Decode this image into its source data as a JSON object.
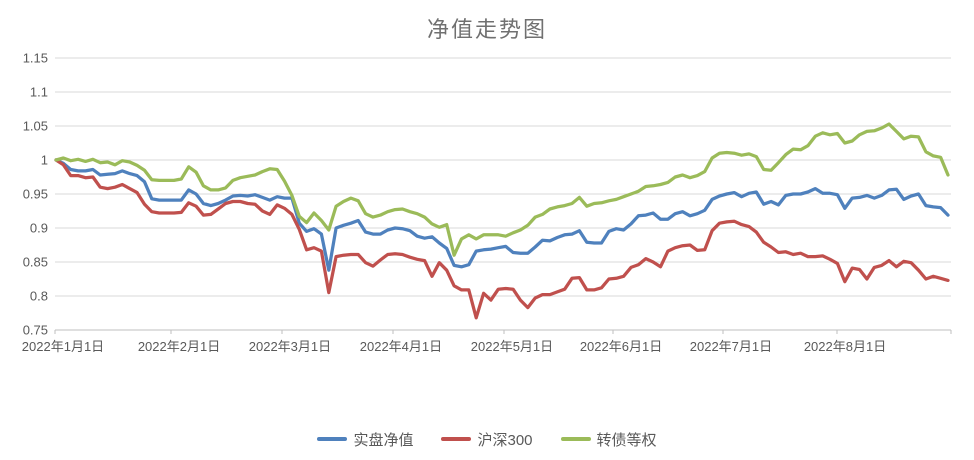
{
  "colors": {
    "background": "#FFFFFF",
    "grid": "#D9D9D9",
    "axis_line": "#BFBFBF",
    "tick_label": "#595959",
    "title": "#707070",
    "series_blue": "#4F81BD",
    "series_red": "#C0504D",
    "series_green": "#9BBB59"
  },
  "chart_data": {
    "type": "line",
    "title": "净值走势图",
    "xlabel": "",
    "ylabel": "",
    "ylim": [
      0.75,
      1.15
    ],
    "grid": true,
    "legend_position": "bottom",
    "x_note": "daily net-value curves sampled at ~2-day intervals, 2022-01-01 to 2022-08-31 (values estimated from pixels)",
    "y_ticks": [
      {
        "label": "1.15",
        "value": 1.15
      },
      {
        "label": "1.1",
        "value": 1.1
      },
      {
        "label": "1.05",
        "value": 1.05
      },
      {
        "label": "1",
        "value": 1.0
      },
      {
        "label": "0.95",
        "value": 0.95
      },
      {
        "label": "0.9",
        "value": 0.9
      },
      {
        "label": "0.85",
        "value": 0.85
      },
      {
        "label": "0.8",
        "value": 0.8
      },
      {
        "label": "0.75",
        "value": 0.75
      }
    ],
    "x_ticks": [
      {
        "label": "2022年1月1日",
        "pos": 0.0
      },
      {
        "label": "2022年2月1日",
        "pos": 0.1295
      },
      {
        "label": "2022年3月1日",
        "pos": 0.2533
      },
      {
        "label": "2022年4月1日",
        "pos": 0.3772
      },
      {
        "label": "2022年5月1日",
        "pos": 0.5011
      },
      {
        "label": "2022年6月1日",
        "pos": 0.6228
      },
      {
        "label": "2022年7月1日",
        "pos": 0.7455
      },
      {
        "label": "2022年8月1日",
        "pos": 0.8728
      },
      {
        "label": "",
        "pos": 1.0
      }
    ],
    "series": [
      {
        "name": "实盘净值",
        "color": "#4F81BD",
        "values": [
          1.0,
          0.995,
          0.986,
          0.984,
          0.984,
          0.986,
          0.978,
          0.979,
          0.98,
          0.984,
          0.98,
          0.977,
          0.968,
          0.943,
          0.941,
          0.941,
          0.941,
          0.941,
          0.956,
          0.95,
          0.936,
          0.933,
          0.936,
          0.941,
          0.947,
          0.948,
          0.947,
          0.949,
          0.945,
          0.941,
          0.946,
          0.944,
          0.944,
          0.907,
          0.895,
          0.899,
          0.891,
          0.838,
          0.9,
          0.904,
          0.907,
          0.911,
          0.894,
          0.891,
          0.891,
          0.897,
          0.9,
          0.899,
          0.896,
          0.888,
          0.885,
          0.887,
          0.878,
          0.87,
          0.845,
          0.843,
          0.846,
          0.866,
          0.868,
          0.869,
          0.871,
          0.873,
          0.864,
          0.863,
          0.863,
          0.872,
          0.882,
          0.881,
          0.886,
          0.89,
          0.891,
          0.896,
          0.879,
          0.878,
          0.878,
          0.895,
          0.899,
          0.897,
          0.906,
          0.918,
          0.919,
          0.922,
          0.913,
          0.913,
          0.921,
          0.924,
          0.918,
          0.921,
          0.926,
          0.942,
          0.947,
          0.95,
          0.952,
          0.946,
          0.951,
          0.953,
          0.935,
          0.939,
          0.934,
          0.948,
          0.95,
          0.95,
          0.953,
          0.958,
          0.951,
          0.951,
          0.949,
          0.929,
          0.944,
          0.945,
          0.948,
          0.944,
          0.948,
          0.956,
          0.957,
          0.942,
          0.947,
          0.95,
          0.933,
          0.931,
          0.93,
          0.919
        ]
      },
      {
        "name": "沪深300",
        "color": "#C0504D",
        "values": [
          1.0,
          0.993,
          0.977,
          0.977,
          0.974,
          0.975,
          0.96,
          0.958,
          0.96,
          0.964,
          0.958,
          0.952,
          0.935,
          0.924,
          0.922,
          0.922,
          0.922,
          0.923,
          0.937,
          0.932,
          0.919,
          0.92,
          0.928,
          0.936,
          0.939,
          0.939,
          0.936,
          0.935,
          0.925,
          0.92,
          0.934,
          0.929,
          0.92,
          0.898,
          0.868,
          0.871,
          0.866,
          0.805,
          0.858,
          0.86,
          0.861,
          0.861,
          0.849,
          0.844,
          0.853,
          0.861,
          0.862,
          0.861,
          0.857,
          0.854,
          0.852,
          0.829,
          0.849,
          0.838,
          0.815,
          0.809,
          0.809,
          0.768,
          0.804,
          0.794,
          0.81,
          0.811,
          0.81,
          0.794,
          0.783,
          0.797,
          0.802,
          0.802,
          0.806,
          0.81,
          0.826,
          0.827,
          0.809,
          0.809,
          0.812,
          0.825,
          0.826,
          0.829,
          0.842,
          0.846,
          0.855,
          0.85,
          0.843,
          0.866,
          0.871,
          0.874,
          0.875,
          0.867,
          0.868,
          0.896,
          0.907,
          0.909,
          0.91,
          0.905,
          0.902,
          0.894,
          0.879,
          0.872,
          0.864,
          0.865,
          0.861,
          0.863,
          0.858,
          0.858,
          0.859,
          0.854,
          0.848,
          0.821,
          0.841,
          0.839,
          0.825,
          0.842,
          0.845,
          0.852,
          0.843,
          0.851,
          0.849,
          0.838,
          0.825,
          0.829,
          0.826,
          0.823
        ]
      },
      {
        "name": "转债等权",
        "color": "#9BBB59",
        "values": [
          1.0,
          1.003,
          0.999,
          1.001,
          0.998,
          1.001,
          0.996,
          0.997,
          0.993,
          0.999,
          0.997,
          0.992,
          0.985,
          0.971,
          0.97,
          0.97,
          0.97,
          0.972,
          0.99,
          0.982,
          0.962,
          0.956,
          0.956,
          0.959,
          0.97,
          0.974,
          0.976,
          0.978,
          0.983,
          0.987,
          0.986,
          0.969,
          0.948,
          0.917,
          0.908,
          0.922,
          0.911,
          0.897,
          0.932,
          0.939,
          0.944,
          0.94,
          0.921,
          0.916,
          0.919,
          0.924,
          0.927,
          0.928,
          0.924,
          0.921,
          0.916,
          0.906,
          0.901,
          0.905,
          0.86,
          0.884,
          0.89,
          0.884,
          0.89,
          0.89,
          0.89,
          0.888,
          0.893,
          0.897,
          0.904,
          0.916,
          0.92,
          0.928,
          0.931,
          0.933,
          0.936,
          0.945,
          0.932,
          0.936,
          0.937,
          0.94,
          0.942,
          0.946,
          0.95,
          0.954,
          0.961,
          0.962,
          0.964,
          0.967,
          0.975,
          0.978,
          0.974,
          0.977,
          0.983,
          1.003,
          1.01,
          1.011,
          1.01,
          1.007,
          1.009,
          1.005,
          0.986,
          0.985,
          0.996,
          1.008,
          1.016,
          1.015,
          1.021,
          1.035,
          1.04,
          1.037,
          1.039,
          1.025,
          1.028,
          1.037,
          1.042,
          1.043,
          1.047,
          1.053,
          1.042,
          1.031,
          1.035,
          1.034,
          1.012,
          1.006,
          1.004,
          0.978
        ]
      }
    ]
  },
  "legend": {
    "items": [
      {
        "label": "实盘净值"
      },
      {
        "label": "沪深300"
      },
      {
        "label": "转债等权"
      }
    ]
  }
}
